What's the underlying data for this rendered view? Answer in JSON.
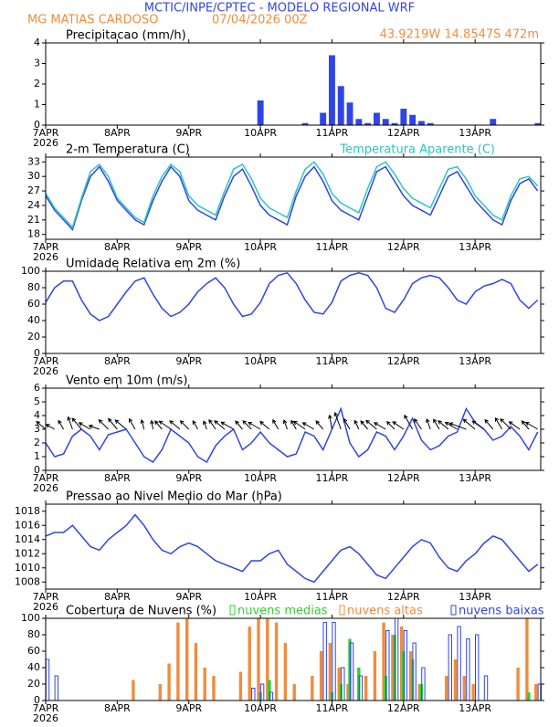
{
  "header": {
    "title": "MCTIC/INPE/CPTEC - MODELO REGIONAL WRF",
    "location": "MG MATIAS CARDOSO",
    "date": "07/04/2026 00Z",
    "coords": "43.9219W 14.8547S 472m"
  },
  "chart_data": [
    {
      "type": "bar",
      "title": "Precipitacao (mm/h)",
      "x_year": "2026",
      "x": [
        0,
        3,
        6,
        9,
        12,
        15,
        18,
        21,
        24,
        27,
        30,
        33,
        36,
        39,
        42,
        45,
        48,
        51,
        54,
        57,
        60,
        63,
        66,
        69,
        72,
        75,
        78,
        81,
        84,
        87,
        90,
        93,
        96,
        99,
        102,
        105,
        108,
        111,
        114,
        117,
        120,
        123,
        126,
        129,
        132,
        135,
        138,
        141,
        144,
        147,
        150,
        153,
        156,
        159,
        162,
        165
      ],
      "xlim": [
        0,
        166
      ],
      "xticks": [
        {
          "value": 0,
          "label": "7APR"
        },
        {
          "value": 24,
          "label": "8APR"
        },
        {
          "value": 48,
          "label": "9APR"
        },
        {
          "value": 72,
          "label": "10APR"
        },
        {
          "value": 96,
          "label": "11APR"
        },
        {
          "value": 120,
          "label": "12APR"
        },
        {
          "value": 144,
          "label": "13APR"
        }
      ],
      "ylim": [
        0,
        4
      ],
      "yticks": [
        0,
        1,
        2,
        3,
        4
      ],
      "series": [
        {
          "color": "#2f45e6",
          "values": [
            0,
            0,
            0,
            0,
            0,
            0,
            0,
            0,
            0,
            0,
            0,
            0,
            0,
            0,
            0,
            0,
            0,
            0,
            0,
            0,
            0,
            0,
            0,
            0,
            1.2,
            0,
            0,
            0,
            0,
            0.1,
            0,
            0.6,
            3.4,
            1.9,
            1.1,
            0.3,
            0.1,
            0.6,
            0.3,
            0.1,
            0.8,
            0.5,
            0.2,
            0.1,
            0,
            0,
            0,
            0,
            0,
            0,
            0.3,
            0,
            0,
            0,
            0,
            0.1
          ]
        }
      ]
    },
    {
      "type": "line",
      "title": "2-m Temperatura (C)",
      "x_year": "2026",
      "x": [
        0,
        3,
        6,
        9,
        12,
        15,
        18,
        21,
        24,
        27,
        30,
        33,
        36,
        39,
        42,
        45,
        48,
        51,
        54,
        57,
        60,
        63,
        66,
        69,
        72,
        75,
        78,
        81,
        84,
        87,
        90,
        93,
        96,
        99,
        102,
        105,
        108,
        111,
        114,
        117,
        120,
        123,
        126,
        129,
        132,
        135,
        138,
        141,
        144,
        147,
        150,
        153,
        156,
        159,
        162,
        165
      ],
      "xlim": [
        0,
        166
      ],
      "xticks": [
        {
          "value": 0,
          "label": "7APR"
        },
        {
          "value": 24,
          "label": "8APR"
        },
        {
          "value": 48,
          "label": "9APR"
        },
        {
          "value": 72,
          "label": "10APR"
        },
        {
          "value": 96,
          "label": "11APR"
        },
        {
          "value": 120,
          "label": "12APR"
        },
        {
          "value": 144,
          "label": "13APR"
        }
      ],
      "ylim": [
        17,
        34
      ],
      "yticks": [
        18,
        21,
        24,
        27,
        30,
        33
      ],
      "series": [
        {
          "color": "#2f45e6",
          "values": [
            26,
            23,
            21,
            19,
            25,
            30,
            32,
            29,
            25,
            23,
            21,
            20,
            25,
            29,
            32,
            30,
            25,
            23,
            22,
            21,
            26,
            30,
            31.5,
            28,
            24,
            22,
            21,
            20,
            26,
            30,
            32,
            29,
            25,
            23,
            22,
            21,
            26,
            31,
            32,
            29,
            26,
            24,
            23,
            22,
            26,
            30,
            31,
            28,
            25,
            23,
            21,
            20,
            25,
            28.5,
            29.5,
            27
          ]
        },
        {
          "name": "Temperatura Aparente (C)",
          "color": "#2ec4c4",
          "values": [
            26.5,
            23.5,
            21.5,
            19.5,
            25.5,
            31,
            32.5,
            30,
            25.5,
            23.5,
            21.5,
            20.5,
            26,
            30,
            32.5,
            31,
            26,
            24,
            23,
            22,
            27,
            31.5,
            32.5,
            29.5,
            25.5,
            23.5,
            22.5,
            21.5,
            27,
            31.5,
            33,
            30.5,
            26.5,
            24.5,
            23.5,
            22.5,
            27.5,
            32,
            33,
            30.5,
            27.5,
            25.5,
            24.5,
            23.5,
            27.5,
            31.5,
            32,
            29.5,
            26,
            24,
            22,
            21,
            26,
            29.5,
            30,
            28
          ]
        }
      ]
    },
    {
      "type": "line",
      "title": "Umidade Relativa em 2m (%)",
      "x_year": "2026",
      "x": [
        0,
        3,
        6,
        9,
        12,
        15,
        18,
        21,
        24,
        27,
        30,
        33,
        36,
        39,
        42,
        45,
        48,
        51,
        54,
        57,
        60,
        63,
        66,
        69,
        72,
        75,
        78,
        81,
        84,
        87,
        90,
        93,
        96,
        99,
        102,
        105,
        108,
        111,
        114,
        117,
        120,
        123,
        126,
        129,
        132,
        135,
        138,
        141,
        144,
        147,
        150,
        153,
        156,
        159,
        162,
        165
      ],
      "xlim": [
        0,
        166
      ],
      "xticks": [
        {
          "value": 0,
          "label": "7APR"
        },
        {
          "value": 24,
          "label": "8APR"
        },
        {
          "value": 48,
          "label": "9APR"
        },
        {
          "value": 72,
          "label": "10APR"
        },
        {
          "value": 96,
          "label": "11APR"
        },
        {
          "value": 120,
          "label": "12APR"
        },
        {
          "value": 144,
          "label": "13APR"
        }
      ],
      "ylim": [
        0,
        100
      ],
      "yticks": [
        0,
        20,
        40,
        60,
        80,
        100
      ],
      "series": [
        {
          "color": "#2f45e6",
          "values": [
            62,
            80,
            88,
            88,
            65,
            48,
            40,
            45,
            60,
            75,
            88,
            92,
            72,
            55,
            45,
            50,
            60,
            75,
            85,
            92,
            80,
            60,
            45,
            48,
            62,
            85,
            95,
            98,
            85,
            65,
            50,
            48,
            62,
            88,
            95,
            98,
            95,
            80,
            55,
            50,
            65,
            85,
            92,
            95,
            92,
            80,
            65,
            60,
            75,
            82,
            85,
            90,
            85,
            65,
            55,
            65
          ]
        }
      ]
    },
    {
      "type": "line",
      "title": "Vento em 10m (m/s)",
      "x_year": "2026",
      "x": [
        0,
        3,
        6,
        9,
        12,
        15,
        18,
        21,
        24,
        27,
        30,
        33,
        36,
        39,
        42,
        45,
        48,
        51,
        54,
        57,
        60,
        63,
        66,
        69,
        72,
        75,
        78,
        81,
        84,
        87,
        90,
        93,
        96,
        99,
        102,
        105,
        108,
        111,
        114,
        117,
        120,
        123,
        126,
        129,
        132,
        135,
        138,
        141,
        144,
        147,
        150,
        153,
        156,
        159,
        162,
        165
      ],
      "xlim": [
        0,
        166
      ],
      "xticks": [
        {
          "value": 0,
          "label": "7APR"
        },
        {
          "value": 24,
          "label": "8APR"
        },
        {
          "value": 48,
          "label": "9APR"
        },
        {
          "value": 72,
          "label": "10APR"
        },
        {
          "value": 96,
          "label": "11APR"
        },
        {
          "value": 120,
          "label": "12APR"
        },
        {
          "value": 144,
          "label": "13APR"
        }
      ],
      "ylim": [
        0,
        6
      ],
      "yticks": [
        0,
        1,
        2,
        3,
        4,
        5,
        6
      ],
      "series": [
        {
          "color": "#2f45e6",
          "values": [
            2.0,
            1.0,
            1.2,
            2.5,
            3.0,
            2.5,
            1.5,
            2.6,
            2.8,
            3.0,
            2.0,
            1.0,
            0.6,
            1.5,
            3.0,
            2.5,
            2.0,
            1.0,
            0.6,
            1.8,
            2.5,
            3.0,
            1.5,
            2.0,
            2.8,
            2.0,
            1.5,
            1.0,
            1.2,
            2.8,
            2.5,
            1.5,
            3.0,
            4.5,
            2.0,
            1.0,
            1.5,
            2.8,
            2.5,
            1.5,
            2.5,
            3.8,
            2.2,
            1.5,
            1.8,
            2.5,
            2.8,
            4.5,
            3.5,
            3.0,
            2.2,
            2.5,
            3.2,
            2.5,
            1.5,
            2.8
          ],
          "direction": [
            130,
            120,
            150,
            160,
            140,
            120,
            110,
            135,
            140,
            130,
            150,
            165,
            170,
            140,
            125,
            130,
            135,
            150,
            160,
            145,
            130,
            120,
            140,
            135,
            120,
            130,
            150,
            160,
            150,
            125,
            120,
            140,
            170,
            160,
            150,
            155,
            140,
            130,
            120,
            135,
            125,
            150,
            145,
            160,
            150,
            130,
            120,
            110,
            130,
            125,
            140,
            150,
            135,
            125,
            140,
            120
          ]
        }
      ]
    },
    {
      "type": "line",
      "title": "Pressao ao Nivel Medio do Mar (hPa)",
      "x_year": "2026",
      "x": [
        0,
        3,
        6,
        9,
        12,
        15,
        18,
        21,
        24,
        27,
        30,
        33,
        36,
        39,
        42,
        45,
        48,
        51,
        54,
        57,
        60,
        63,
        66,
        69,
        72,
        75,
        78,
        81,
        84,
        87,
        90,
        93,
        96,
        99,
        102,
        105,
        108,
        111,
        114,
        117,
        120,
        123,
        126,
        129,
        132,
        135,
        138,
        141,
        144,
        147,
        150,
        153,
        156,
        159,
        162,
        165
      ],
      "xlim": [
        0,
        166
      ],
      "xticks": [
        {
          "value": 0,
          "label": "7APR"
        },
        {
          "value": 24,
          "label": "8APR"
        },
        {
          "value": 48,
          "label": "9APR"
        },
        {
          "value": 72,
          "label": "10APR"
        },
        {
          "value": 96,
          "label": "11APR"
        },
        {
          "value": 120,
          "label": "12APR"
        },
        {
          "value": 144,
          "label": "13APR"
        }
      ],
      "ylim": [
        1007,
        1019
      ],
      "yticks": [
        1008,
        1010,
        1012,
        1014,
        1016,
        1018
      ],
      "series": [
        {
          "color": "#2f45e6",
          "values": [
            1014.5,
            1015,
            1015,
            1016,
            1014.5,
            1013,
            1012.5,
            1014,
            1015,
            1016,
            1017.5,
            1016,
            1014,
            1012.5,
            1012,
            1013,
            1013.5,
            1013,
            1012,
            1011,
            1010.5,
            1010,
            1009.5,
            1011,
            1011,
            1012,
            1012.5,
            1010.5,
            1009.5,
            1008.5,
            1008,
            1009.5,
            1011,
            1012.5,
            1013,
            1012,
            1010.5,
            1009,
            1008.5,
            1010,
            1011.5,
            1013,
            1014,
            1013.5,
            1011.5,
            1010,
            1009.5,
            1011,
            1012,
            1013.5,
            1014.5,
            1014,
            1012.5,
            1011,
            1009.5,
            1010.5
          ]
        }
      ]
    },
    {
      "type": "bar",
      "title": "Cobertura de Nuvens (%)",
      "x_year": "2026",
      "x": [
        0,
        3,
        6,
        9,
        12,
        15,
        18,
        21,
        24,
        27,
        30,
        33,
        36,
        39,
        42,
        45,
        48,
        51,
        54,
        57,
        60,
        63,
        66,
        69,
        72,
        75,
        78,
        81,
        84,
        87,
        90,
        93,
        96,
        99,
        102,
        105,
        108,
        111,
        114,
        117,
        120,
        123,
        126,
        129,
        132,
        135,
        138,
        141,
        144,
        147,
        150,
        153,
        156,
        159,
        162,
        165
      ],
      "xlim": [
        0,
        166
      ],
      "xticks": [
        {
          "value": 0,
          "label": "7APR"
        },
        {
          "value": 24,
          "label": "8APR"
        },
        {
          "value": 48,
          "label": "9APR"
        },
        {
          "value": 72,
          "label": "10APR"
        },
        {
          "value": 96,
          "label": "11APR"
        },
        {
          "value": 120,
          "label": "12APR"
        },
        {
          "value": 144,
          "label": "13APR"
        }
      ],
      "ylim": [
        0,
        100
      ],
      "yticks": [
        0,
        20,
        40,
        60,
        80,
        100
      ],
      "series": [
        {
          "name": "nuvens altas",
          "color": "#f08c3c",
          "filled": true,
          "values": [
            0,
            0,
            0,
            0,
            0,
            0,
            0,
            0,
            0,
            0,
            25,
            0,
            0,
            20,
            45,
            95,
            100,
            70,
            40,
            30,
            0,
            0,
            35,
            90,
            100,
            100,
            95,
            70,
            20,
            0,
            30,
            60,
            70,
            40,
            20,
            0,
            30,
            60,
            95,
            80,
            90,
            60,
            20,
            0,
            0,
            30,
            50,
            30,
            20,
            0,
            0,
            0,
            0,
            40,
            100,
            20
          ]
        },
        {
          "name": "nuvens medias",
          "color": "#30d030",
          "filled": true,
          "values": [
            0,
            0,
            0,
            0,
            0,
            0,
            0,
            0,
            0,
            0,
            0,
            0,
            0,
            0,
            0,
            0,
            0,
            0,
            0,
            0,
            0,
            0,
            0,
            0,
            10,
            25,
            0,
            0,
            0,
            0,
            0,
            0,
            10,
            20,
            75,
            40,
            0,
            0,
            30,
            80,
            60,
            50,
            20,
            0,
            0,
            0,
            0,
            0,
            0,
            0,
            0,
            0,
            0,
            0,
            10,
            0
          ]
        },
        {
          "name": "nuvens baixas",
          "color": "#2f45e6",
          "filled": false,
          "values": [
            50,
            30,
            0,
            0,
            0,
            0,
            0,
            0,
            0,
            0,
            0,
            0,
            0,
            0,
            0,
            0,
            0,
            0,
            0,
            0,
            0,
            0,
            0,
            15,
            20,
            10,
            0,
            0,
            0,
            0,
            0,
            95,
            95,
            40,
            70,
            30,
            0,
            0,
            85,
            100,
            85,
            70,
            40,
            0,
            0,
            80,
            90,
            75,
            80,
            30,
            0,
            0,
            0,
            0,
            0,
            20
          ]
        }
      ]
    }
  ]
}
